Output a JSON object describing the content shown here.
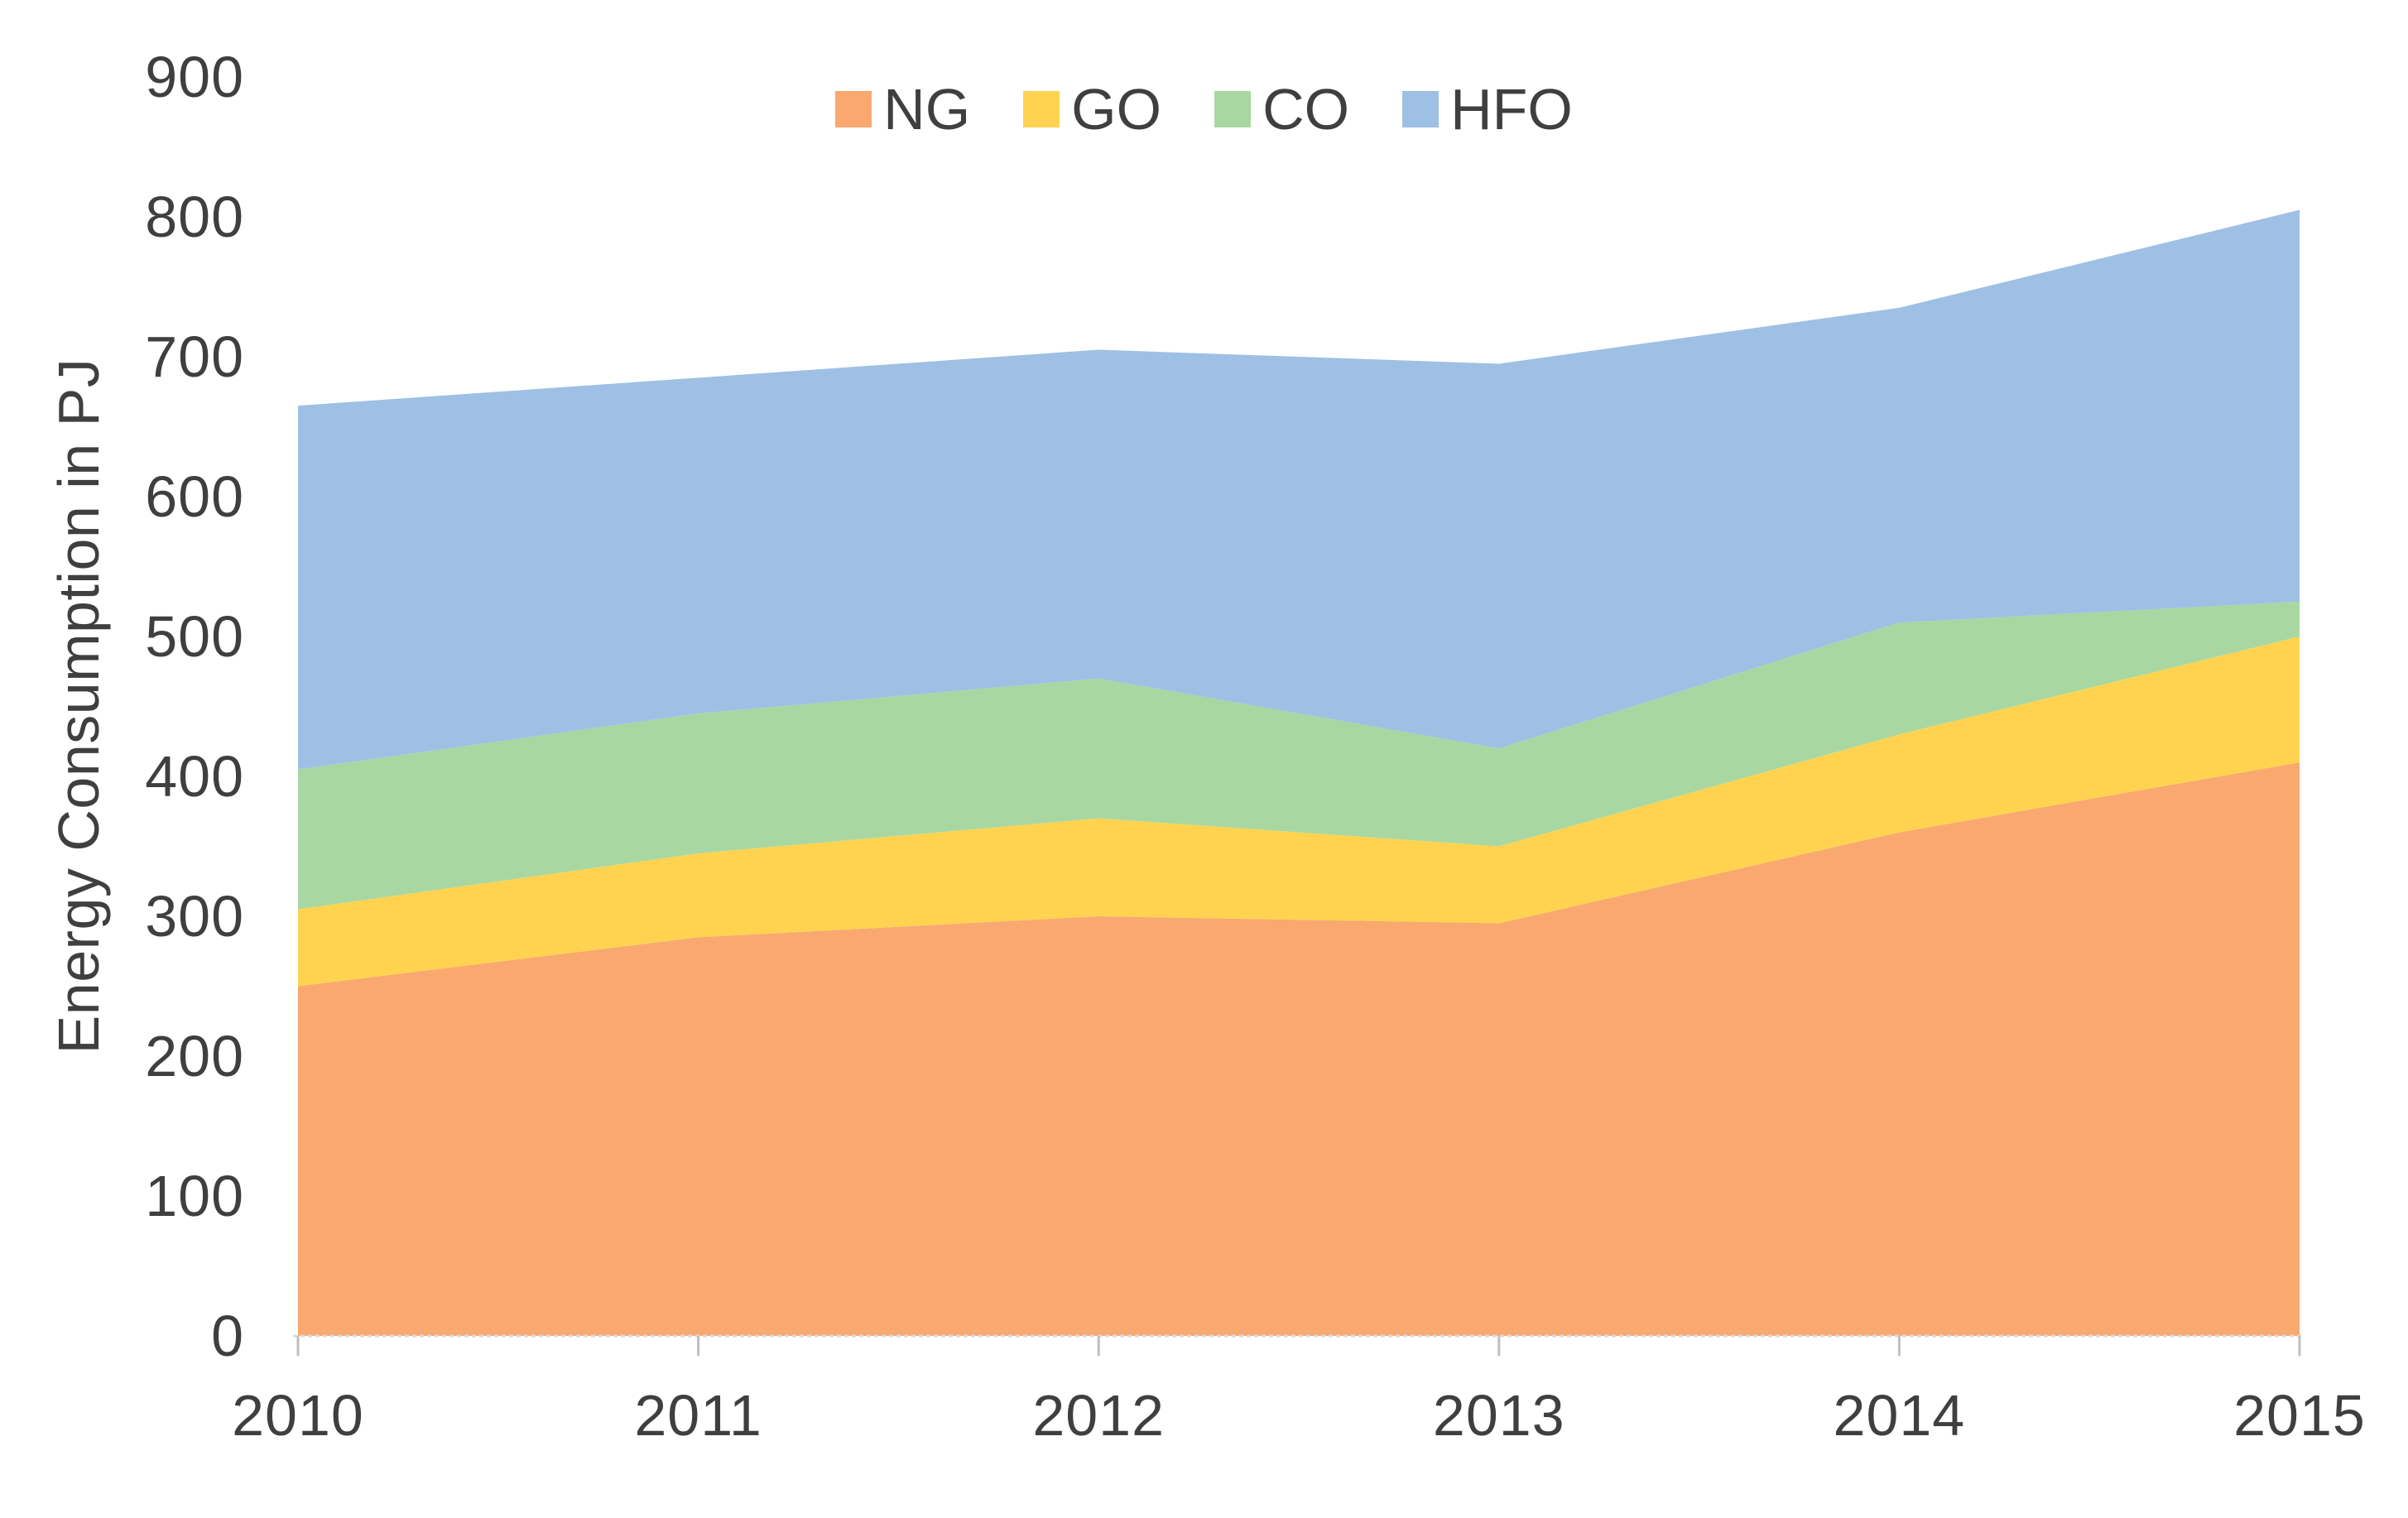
{
  "chart_data": {
    "type": "area",
    "stacked": true,
    "title": "",
    "xlabel": "",
    "ylabel": "Energy Consumption in PJ",
    "x": [
      "2010",
      "2011",
      "2012",
      "2013",
      "2014",
      "2015"
    ],
    "series": [
      {
        "name": "NG",
        "color": "#F9A870",
        "values": [
          250,
          285,
          300,
          295,
          360,
          410
        ]
      },
      {
        "name": "GO",
        "color": "#FFD34F",
        "values": [
          55,
          60,
          70,
          55,
          70,
          90
        ]
      },
      {
        "name": "CO",
        "color": "#A8D7A2",
        "values": [
          100,
          100,
          100,
          70,
          80,
          25
        ]
      },
      {
        "name": "HFO",
        "color": "#9EC0E4",
        "values": [
          260,
          240,
          235,
          275,
          225,
          280
        ]
      }
    ],
    "stacked_totals": [
      665,
      685,
      705,
      695,
      735,
      805
    ],
    "ylim": [
      0,
      900
    ],
    "yticks": [
      0,
      100,
      200,
      300,
      400,
      500,
      600,
      700,
      800,
      900
    ],
    "legend_position": "top-center",
    "grid": false,
    "axis_text_color": "#3F3F3F",
    "baseline_color": "#D9D9D9",
    "tick_mark_color": "#BFBFBF"
  }
}
